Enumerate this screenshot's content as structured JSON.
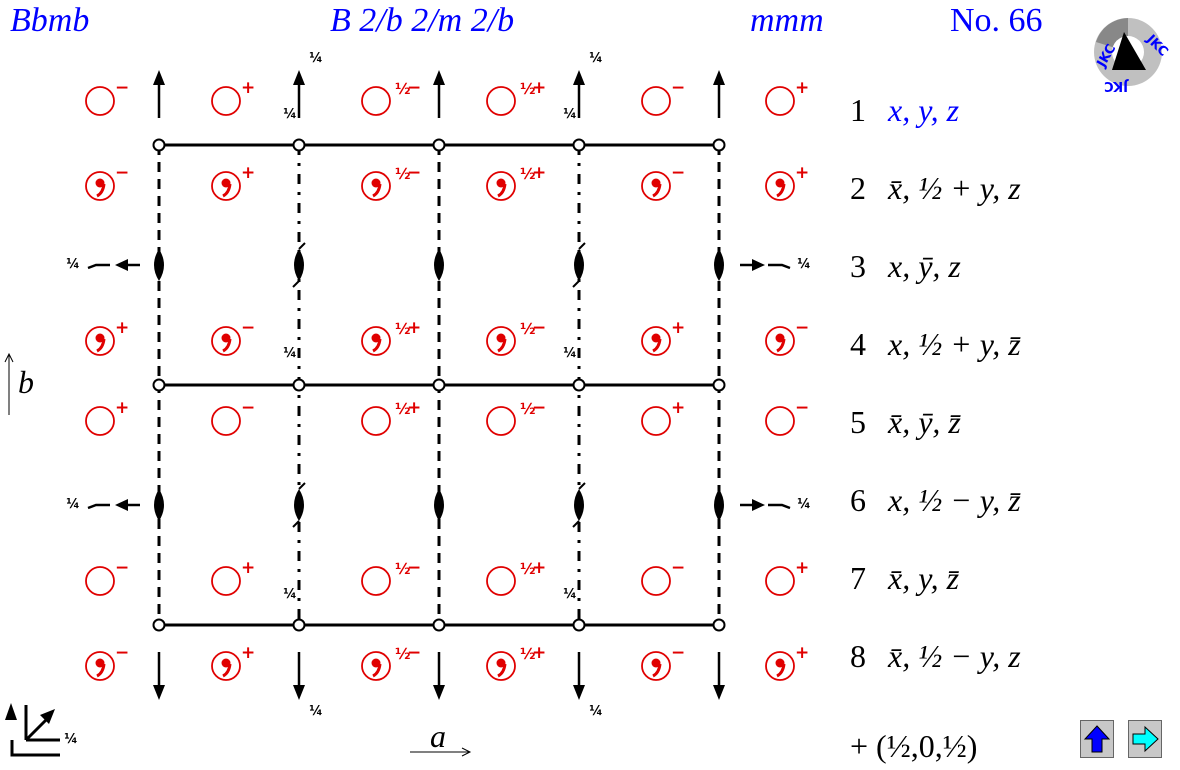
{
  "header": {
    "hm_short": "Bbmb",
    "hm_full": "B 2/b 2/m 2/b",
    "point_group": "mmm",
    "number": "No. 66"
  },
  "logo": {
    "text": "JKC"
  },
  "axes": {
    "a": "a",
    "b": "b",
    "height_label": "¼"
  },
  "colors": {
    "symbol": "#e00000",
    "coords_first": "#0000ff",
    "button_up": "#0000ff",
    "button_next": "#00ffff"
  },
  "symbols": [
    [
      {
        "comma": false,
        "h": "",
        "s": "−"
      },
      {
        "comma": false,
        "h": "",
        "s": "+"
      },
      {
        "comma": false,
        "h": "½",
        "s": "−"
      },
      {
        "comma": false,
        "h": "½",
        "s": "+"
      },
      {
        "comma": false,
        "h": "",
        "s": "−"
      },
      {
        "comma": false,
        "h": "",
        "s": "+"
      }
    ],
    [
      {
        "comma": true,
        "h": "",
        "s": "−"
      },
      {
        "comma": true,
        "h": "",
        "s": "+"
      },
      {
        "comma": true,
        "h": "½",
        "s": "−"
      },
      {
        "comma": true,
        "h": "½",
        "s": "+"
      },
      {
        "comma": true,
        "h": "",
        "s": "−"
      },
      {
        "comma": true,
        "h": "",
        "s": "+"
      }
    ],
    [
      {
        "comma": true,
        "h": "",
        "s": "+"
      },
      {
        "comma": true,
        "h": "",
        "s": "−"
      },
      {
        "comma": true,
        "h": "½",
        "s": "+"
      },
      {
        "comma": true,
        "h": "½",
        "s": "−"
      },
      {
        "comma": true,
        "h": "",
        "s": "+"
      },
      {
        "comma": true,
        "h": "",
        "s": "−"
      }
    ],
    [
      {
        "comma": false,
        "h": "",
        "s": "+"
      },
      {
        "comma": false,
        "h": "",
        "s": "−"
      },
      {
        "comma": false,
        "h": "½",
        "s": "+"
      },
      {
        "comma": false,
        "h": "½",
        "s": "−"
      },
      {
        "comma": false,
        "h": "",
        "s": "+"
      },
      {
        "comma": false,
        "h": "",
        "s": "−"
      }
    ],
    [
      {
        "comma": false,
        "h": "",
        "s": "−"
      },
      {
        "comma": false,
        "h": "",
        "s": "+"
      },
      {
        "comma": false,
        "h": "½",
        "s": "−"
      },
      {
        "comma": false,
        "h": "½",
        "s": "+"
      },
      {
        "comma": false,
        "h": "",
        "s": "−"
      },
      {
        "comma": false,
        "h": "",
        "s": "+"
      }
    ],
    [
      {
        "comma": true,
        "h": "",
        "s": "−"
      },
      {
        "comma": true,
        "h": "",
        "s": "+"
      },
      {
        "comma": true,
        "h": "½",
        "s": "−"
      },
      {
        "comma": true,
        "h": "½",
        "s": "+"
      },
      {
        "comma": true,
        "h": "",
        "s": "−"
      },
      {
        "comma": true,
        "h": "",
        "s": "+"
      }
    ]
  ],
  "quarter": "¼",
  "coordinates": [
    {
      "n": "1",
      "expr": "x, y, z"
    },
    {
      "n": "2",
      "expr": "x̄, ½ + y, z"
    },
    {
      "n": "3",
      "expr": "x, ȳ, z"
    },
    {
      "n": "4",
      "expr": "x, ½ + y, z̄"
    },
    {
      "n": "5",
      "expr": "x̄, ȳ, z̄"
    },
    {
      "n": "6",
      "expr": "x, ½ − y, z̄"
    },
    {
      "n": "7",
      "expr": "x̄, y, z̄"
    },
    {
      "n": "8",
      "expr": "x̄, ½ − y, z"
    }
  ],
  "centering": "+ (½,0,½)"
}
